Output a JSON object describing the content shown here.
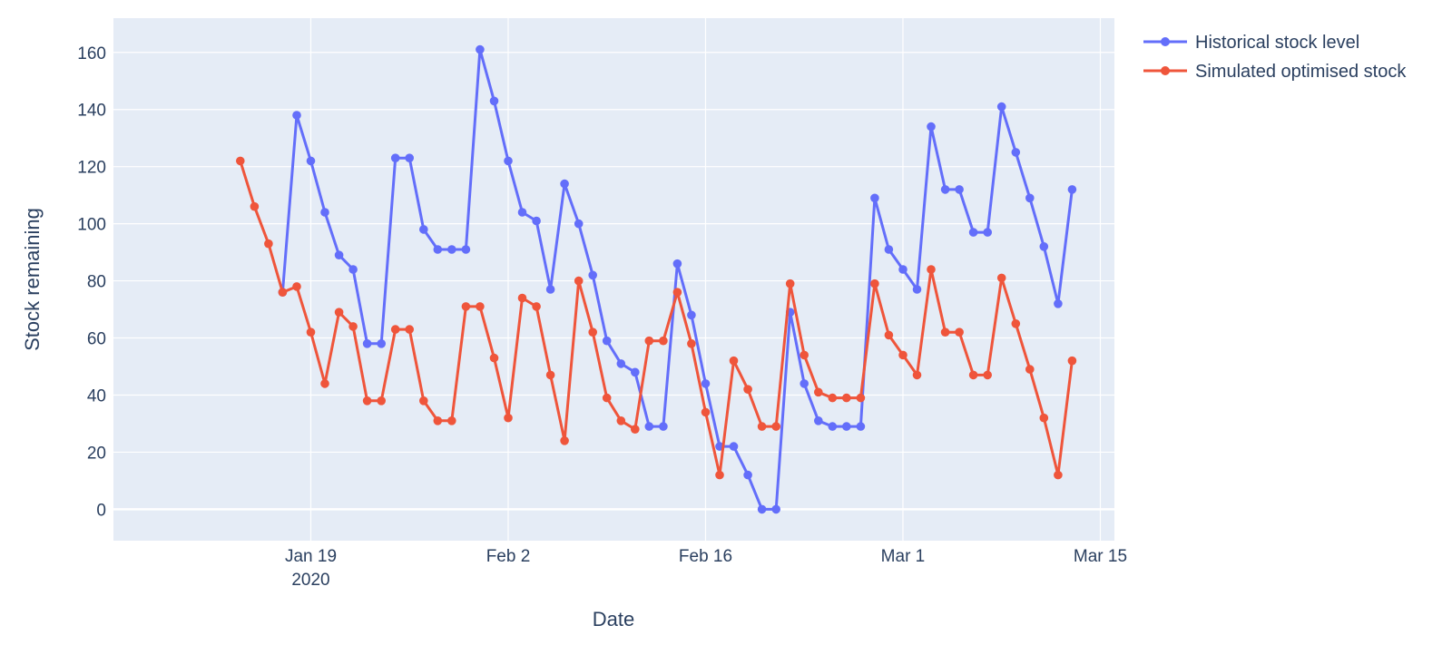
{
  "chart_data": {
    "type": "line",
    "xlabel": "Date",
    "ylabel": "Stock remaining",
    "x_start": "2020-01-14",
    "x_step_days": 1,
    "xlim": [
      "2020-01-05",
      "2020-03-16"
    ],
    "ylim": [
      -11,
      172
    ],
    "x_ticks": [
      {
        "date": "2020-01-19",
        "label": "Jan 19",
        "sublabel": "2020"
      },
      {
        "date": "2020-02-02",
        "label": "Feb 2",
        "sublabel": ""
      },
      {
        "date": "2020-02-16",
        "label": "Feb 16",
        "sublabel": ""
      },
      {
        "date": "2020-03-01",
        "label": "Mar 1",
        "sublabel": ""
      },
      {
        "date": "2020-03-15",
        "label": "Mar 15",
        "sublabel": ""
      }
    ],
    "y_ticks": [
      0,
      20,
      40,
      60,
      80,
      100,
      120,
      140,
      160
    ],
    "grid": true,
    "legend_position": "top-right",
    "series": [
      {
        "name": "Historical stock level",
        "color": "#636efa",
        "values": [
          null,
          null,
          null,
          76,
          138,
          122,
          104,
          89,
          84,
          58,
          58,
          123,
          123,
          98,
          91,
          91,
          91,
          161,
          143,
          122,
          104,
          101,
          77,
          114,
          100,
          82,
          59,
          51,
          48,
          29,
          29,
          86,
          68,
          44,
          22,
          22,
          12,
          0,
          0,
          69,
          44,
          31,
          29,
          29,
          29,
          109,
          91,
          84,
          77,
          134,
          112,
          112,
          97,
          97,
          141,
          125,
          109,
          92,
          72,
          112
        ]
      },
      {
        "name": "Simulated optimised stock",
        "color": "#ef553b",
        "values": [
          122,
          106,
          93,
          76,
          78,
          62,
          44,
          69,
          64,
          38,
          38,
          63,
          63,
          38,
          31,
          31,
          71,
          71,
          53,
          32,
          74,
          71,
          47,
          24,
          80,
          62,
          39,
          31,
          28,
          59,
          59,
          76,
          58,
          34,
          12,
          52,
          42,
          29,
          29,
          79,
          54,
          41,
          39,
          39,
          39,
          79,
          61,
          54,
          47,
          84,
          62,
          62,
          47,
          47,
          81,
          65,
          49,
          32,
          12,
          52
        ]
      }
    ]
  },
  "colors": {
    "plot_background": "#e5ecf6",
    "grid": "#ffffff",
    "text": "#2a3f5f"
  }
}
